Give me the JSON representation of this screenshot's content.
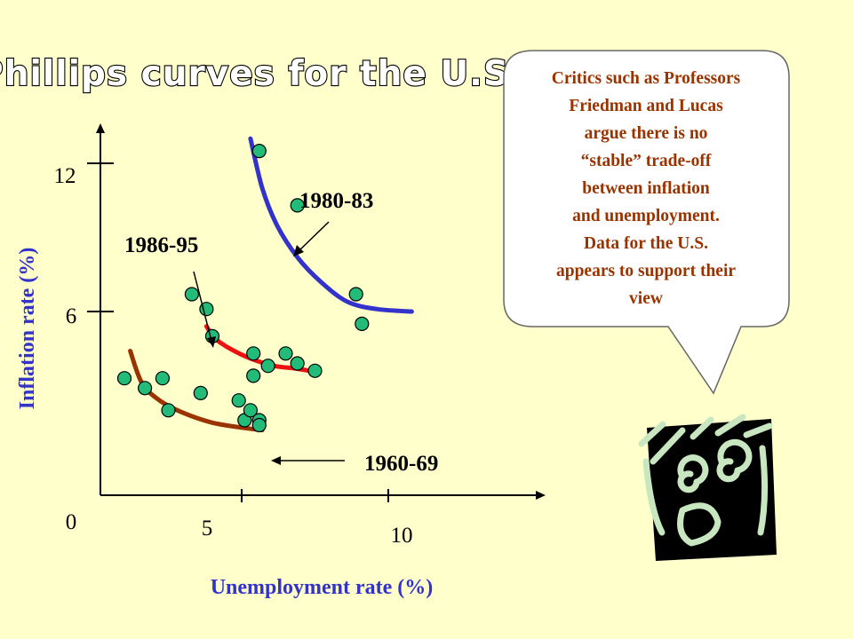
{
  "chart_data": {
    "type": "scatter",
    "title": "Phillips curves for the U.S.",
    "xlabel": "Unemployment rate (%)",
    "ylabel": "Inflation rate (%)",
    "x_ticks": [
      "5",
      "10"
    ],
    "y_ticks": [
      "0",
      "6",
      "12"
    ],
    "xlim": [
      0.2,
      15
    ],
    "ylim": [
      -0.5,
      14.5
    ],
    "grid": false,
    "legend": "none",
    "series": [
      {
        "name": "1960-69",
        "curve_color": "#993300",
        "points": [
          [
            1,
            3.3
          ],
          [
            2.3,
            3.3
          ],
          [
            3.6,
            2.7
          ],
          [
            1.7,
            2.9
          ],
          [
            2.5,
            2
          ],
          [
            4.9,
            2.4
          ],
          [
            5.1,
            1.6
          ],
          [
            5.3,
            2
          ],
          [
            5.6,
            1.6
          ],
          [
            5.6,
            1.4
          ]
        ],
        "curve": [
          [
            1.2,
            4.4
          ],
          [
            1.6,
            3.1
          ],
          [
            2.2,
            2.4
          ],
          [
            3,
            1.9
          ],
          [
            4,
            1.5
          ],
          [
            5,
            1.3
          ],
          [
            5.7,
            1.2
          ]
        ]
      },
      {
        "name": "1986-95",
        "curve_color": "#EE1111",
        "points": [
          [
            3.3,
            6.7
          ],
          [
            3.8,
            6.1
          ],
          [
            4,
            5
          ],
          [
            5.4,
            4.3
          ],
          [
            6.5,
            4.3
          ],
          [
            5.9,
            3.8
          ],
          [
            6.9,
            3.9
          ],
          [
            5.4,
            3.4
          ],
          [
            7.5,
            3.6
          ]
        ],
        "curve": [
          [
            3.8,
            5.4
          ],
          [
            4.1,
            4.9
          ],
          [
            4.6,
            4.5
          ],
          [
            5.3,
            4.1
          ],
          [
            6.1,
            3.8
          ],
          [
            6.8,
            3.7
          ],
          [
            7.3,
            3.6
          ]
        ]
      },
      {
        "name": "1980-83",
        "curve_color": "#3333CC",
        "points": [
          [
            5.6,
            12.5
          ],
          [
            6.9,
            10.3
          ],
          [
            8.9,
            6.7
          ],
          [
            9.1,
            5.5
          ]
        ],
        "curve": [
          [
            5.3,
            13
          ],
          [
            5.7,
            11
          ],
          [
            6.2,
            9.5
          ],
          [
            6.9,
            8.2
          ],
          [
            7.7,
            7.2
          ],
          [
            8.6,
            6.4
          ],
          [
            9.6,
            6.1
          ],
          [
            10.8,
            6
          ]
        ]
      }
    ],
    "annotations": [
      "1980-83",
      "1986-95",
      "1960-69"
    ]
  },
  "callout": {
    "lines": [
      "Critics such as Professors",
      "Friedman and Lucas",
      "argue there is no",
      "“stable” trade-off",
      "between inflation",
      "and unemployment.",
      "Data for the U.S.",
      "appears to support their",
      "view"
    ]
  },
  "colors": {
    "background": "#FFFFCC",
    "axis_label": "#3333CC",
    "callout_text": "#993300",
    "marker_fill": "#22BB77",
    "face_fill": "#C8E6C0"
  },
  "icons": {
    "character": "face-illustration-icon"
  }
}
